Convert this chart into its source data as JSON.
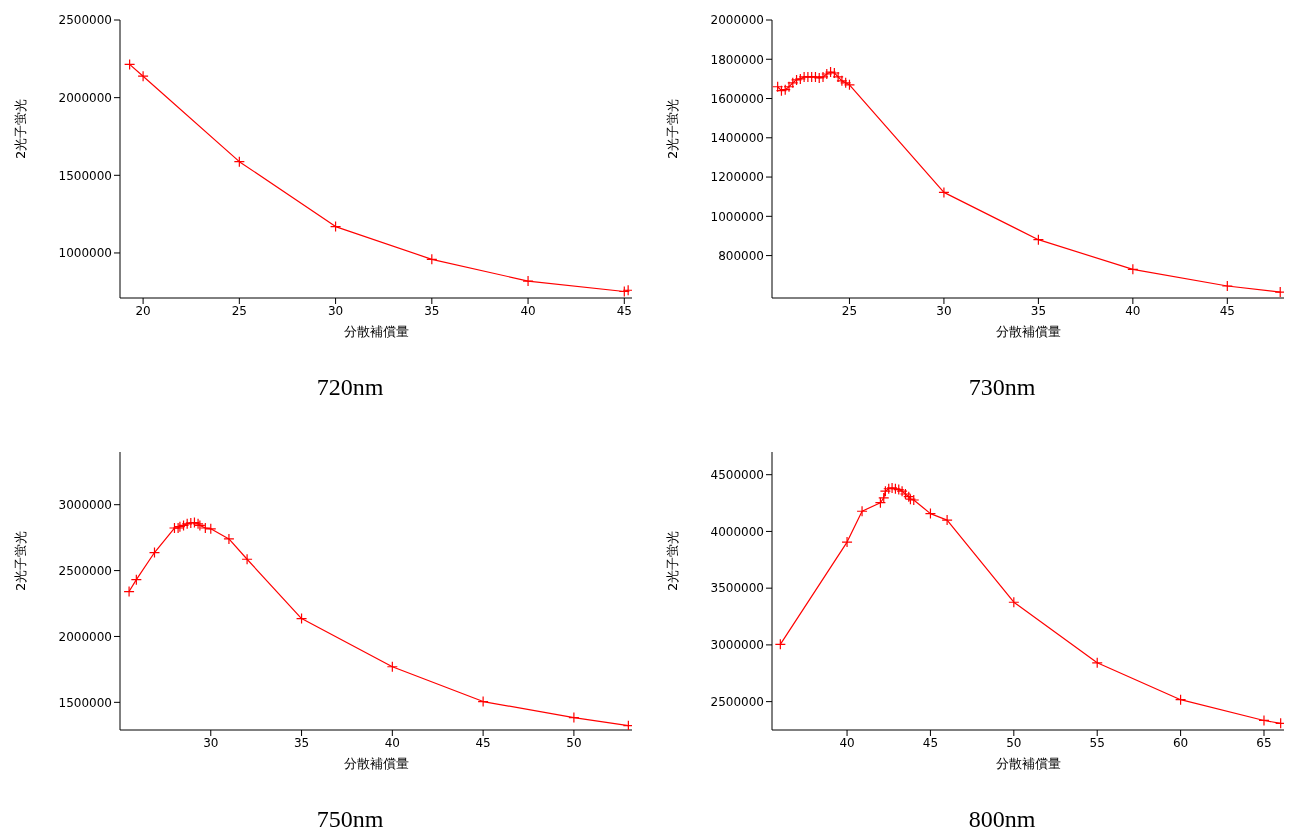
{
  "chart_data": [
    {
      "type": "line",
      "title": "720nm",
      "xlabel": "分散補償量",
      "ylabel": "2光子蛍光",
      "marker": "cross",
      "line_style": "solid",
      "xlim": [
        18.8,
        45.4
      ],
      "xticks": [
        20,
        25,
        30,
        35,
        40,
        45
      ],
      "ylim": [
        710000,
        2500000
      ],
      "yticks": [
        1000000,
        1500000,
        2000000,
        2500000
      ],
      "series": [
        {
          "color": "#ff0000",
          "x": [
            19.3,
            20,
            25,
            30,
            35,
            40,
            45,
            45.2
          ],
          "values": [
            2214000,
            2138000,
            1588000,
            1170000,
            959000,
            819000,
            752000,
            760000
          ]
        }
      ]
    },
    {
      "type": "line",
      "title": "730nm",
      "xlabel": "分散補償量",
      "ylabel": "2光子蛍光",
      "marker": "cross",
      "line_style": "solid",
      "xlim": [
        20.9,
        48
      ],
      "xticks": [
        25,
        30,
        35,
        40,
        45
      ],
      "ylim": [
        584000,
        2000000
      ],
      "yticks": [
        800000,
        1000000,
        1200000,
        1400000,
        1600000,
        1800000,
        2000000
      ],
      "series": [
        {
          "color": "#ff0000",
          "x": [
            21.2,
            21.4,
            21.6,
            21.8,
            22,
            22.2,
            22.4,
            22.6,
            22.8,
            23,
            23.2,
            23.4,
            23.6,
            23.8,
            24,
            24.2,
            24.4,
            24.6,
            24.8,
            25,
            30,
            35,
            40,
            45,
            47.8
          ],
          "values": [
            1660000,
            1640000,
            1645000,
            1660000,
            1680000,
            1695000,
            1700000,
            1710000,
            1710000,
            1710000,
            1710000,
            1705000,
            1710000,
            1725000,
            1735000,
            1730000,
            1710000,
            1690000,
            1680000,
            1670000,
            1122000,
            881000,
            730000,
            645000,
            614000
          ]
        }
      ]
    },
    {
      "type": "line",
      "title": "750nm",
      "xlabel": "分散補償量",
      "ylabel": "2光子蛍光",
      "marker": "cross",
      "line_style": "solid",
      "xlim": [
        25,
        53.2
      ],
      "xticks": [
        30,
        35,
        40,
        45,
        50
      ],
      "ylim": [
        1290000,
        3400000
      ],
      "yticks": [
        1500000,
        2000000,
        2500000,
        3000000
      ],
      "series": [
        {
          "color": "#ff0000",
          "x": [
            25.5,
            25.9,
            26.9,
            28,
            28.2,
            28.3,
            28.5,
            28.7,
            28.9,
            29.1,
            29.3,
            29.4,
            29.7,
            30,
            31,
            32,
            35,
            40,
            45,
            50,
            53
          ],
          "values": [
            2341000,
            2431000,
            2637000,
            2823000,
            2823000,
            2833000,
            2843000,
            2855000,
            2862000,
            2865000,
            2855000,
            2843000,
            2823000,
            2817000,
            2740000,
            2586000,
            2136000,
            1770000,
            1506000,
            1384000,
            1323000
          ]
        }
      ]
    },
    {
      "type": "line",
      "title": "800nm",
      "xlabel": "分散補償量",
      "ylabel": "2光子蛍光",
      "marker": "cross",
      "line_style": "solid",
      "xlim": [
        35.5,
        66.2
      ],
      "xticks": [
        40,
        45,
        50,
        55,
        60,
        65
      ],
      "ylim": [
        2250000,
        4700000
      ],
      "yticks": [
        2500000,
        3000000,
        3500000,
        4000000,
        4500000
      ],
      "series": [
        {
          "color": "#ff0000",
          "x": [
            36,
            40,
            40.9,
            42,
            42.2,
            42.3,
            42.5,
            42.7,
            42.9,
            43.1,
            43.3,
            43.5,
            43.7,
            43.8,
            44,
            45,
            46,
            50,
            55,
            60,
            65,
            66
          ],
          "values": [
            3005000,
            3906000,
            4178000,
            4253000,
            4295000,
            4355000,
            4376000,
            4383000,
            4376000,
            4369000,
            4355000,
            4330000,
            4306000,
            4284000,
            4277000,
            4157000,
            4100000,
            3376000,
            2842000,
            2517000,
            2334000,
            2309000
          ]
        }
      ]
    }
  ]
}
